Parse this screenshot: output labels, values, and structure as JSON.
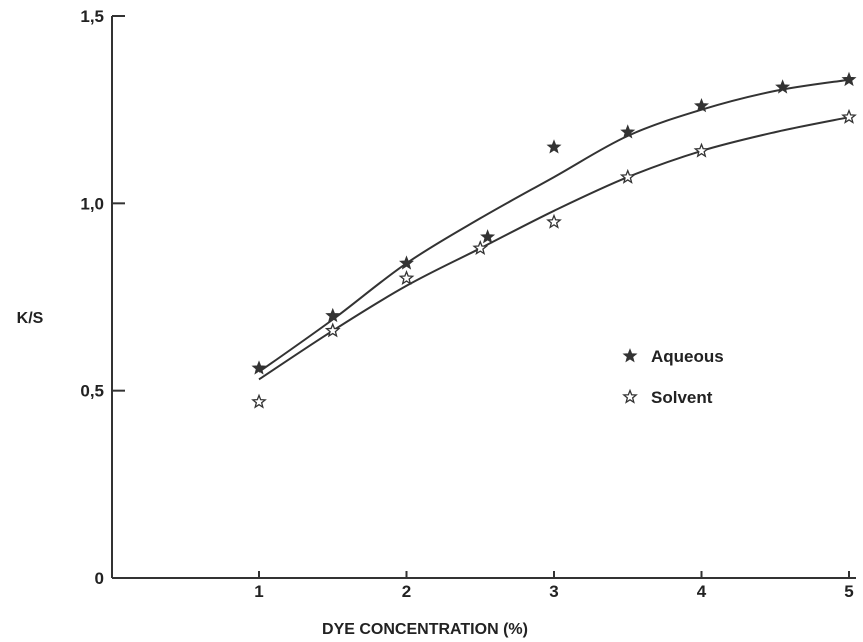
{
  "chart_data": {
    "type": "line",
    "title": "",
    "xlabel": "DYE CONCENTRATION (%)",
    "ylabel": "K/S",
    "xlim": [
      0,
      5
    ],
    "ylim": [
      0,
      1.5
    ],
    "x_ticks": [
      {
        "value": 1,
        "label": "1"
      },
      {
        "value": 2,
        "label": "2"
      },
      {
        "value": 3,
        "label": "3"
      },
      {
        "value": 4,
        "label": "4"
      },
      {
        "value": 5,
        "label": "5"
      }
    ],
    "y_ticks": [
      {
        "value": 0,
        "label": "0"
      },
      {
        "value": 0.5,
        "label": "0,5"
      },
      {
        "value": 1.0,
        "label": "1,0"
      },
      {
        "value": 1.5,
        "label": "1,5"
      }
    ],
    "grid": false,
    "legend_position": "right",
    "series": [
      {
        "name": "Aqueous",
        "marker": "filled-star",
        "color": "#333333",
        "points": [
          {
            "x": 1.0,
            "y": 0.56
          },
          {
            "x": 1.5,
            "y": 0.7
          },
          {
            "x": 2.0,
            "y": 0.84
          },
          {
            "x": 2.55,
            "y": 0.91
          },
          {
            "x": 3.0,
            "y": 1.15
          },
          {
            "x": 3.5,
            "y": 1.19
          },
          {
            "x": 4.0,
            "y": 1.26
          },
          {
            "x": 4.55,
            "y": 1.31
          },
          {
            "x": 5.0,
            "y": 1.33
          }
        ],
        "curve": [
          {
            "x": 1.0,
            "y": 0.55
          },
          {
            "x": 1.5,
            "y": 0.69
          },
          {
            "x": 2.0,
            "y": 0.84
          },
          {
            "x": 2.5,
            "y": 0.96
          },
          {
            "x": 3.0,
            "y": 1.07
          },
          {
            "x": 3.5,
            "y": 1.18
          },
          {
            "x": 4.0,
            "y": 1.25
          },
          {
            "x": 4.5,
            "y": 1.3
          },
          {
            "x": 5.0,
            "y": 1.33
          }
        ]
      },
      {
        "name": "Solvent",
        "marker": "open-star",
        "color": "#333333",
        "points": [
          {
            "x": 1.0,
            "y": 0.47
          },
          {
            "x": 1.5,
            "y": 0.66
          },
          {
            "x": 2.0,
            "y": 0.8
          },
          {
            "x": 2.5,
            "y": 0.88
          },
          {
            "x": 3.0,
            "y": 0.95
          },
          {
            "x": 3.5,
            "y": 1.07
          },
          {
            "x": 4.0,
            "y": 1.14
          },
          {
            "x": 5.0,
            "y": 1.23
          }
        ],
        "curve": [
          {
            "x": 1.0,
            "y": 0.53
          },
          {
            "x": 1.5,
            "y": 0.66
          },
          {
            "x": 2.0,
            "y": 0.78
          },
          {
            "x": 2.5,
            "y": 0.88
          },
          {
            "x": 3.0,
            "y": 0.98
          },
          {
            "x": 3.5,
            "y": 1.07
          },
          {
            "x": 4.0,
            "y": 1.14
          },
          {
            "x": 4.5,
            "y": 1.19
          },
          {
            "x": 5.0,
            "y": 1.23
          }
        ]
      }
    ]
  }
}
